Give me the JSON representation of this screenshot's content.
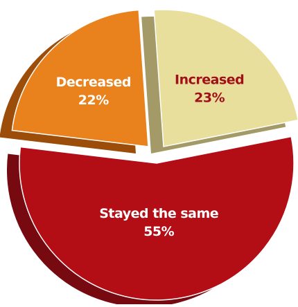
{
  "chart_data": {
    "type": "pie",
    "style": "3d-exploded",
    "slices": [
      {
        "name": "Increased",
        "value_label": "23%",
        "value": 23,
        "color": "#e9df9c",
        "side_color": "#a39a67",
        "text_color": "#a01018"
      },
      {
        "name": "Stayed the same",
        "value_label": "55%",
        "value": 55,
        "color": "#b30d16",
        "side_color": "#770a10",
        "text_color": "#ffffff"
      },
      {
        "name": "Decreased",
        "value_label": "22%",
        "value": 22,
        "color": "#e9821d",
        "side_color": "#9c4d0a",
        "text_color": "#ffffff"
      }
    ]
  }
}
